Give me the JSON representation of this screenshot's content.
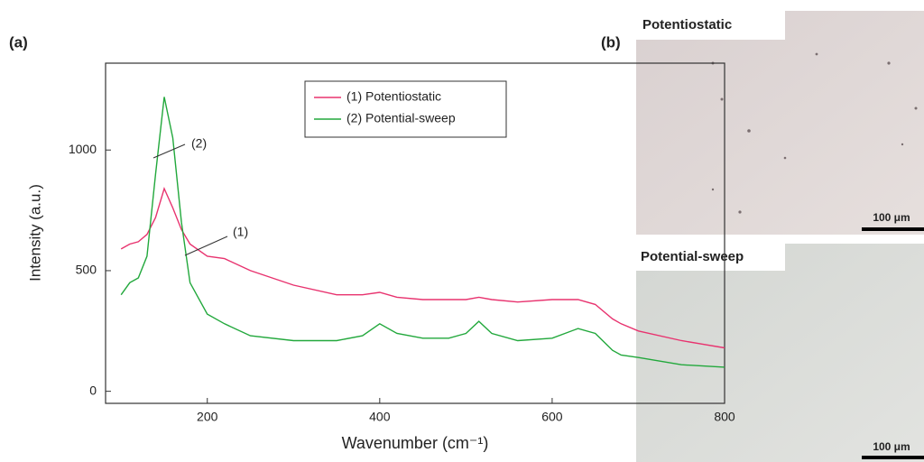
{
  "chart_data": {
    "type": "line",
    "panel_label": "(a)",
    "x_label": "Wavenumber (cm⁻¹)",
    "y_label": "Intensity (a.u.)",
    "x": [
      100,
      110,
      120,
      130,
      140,
      150,
      160,
      170,
      180,
      200,
      220,
      250,
      300,
      350,
      380,
      400,
      420,
      450,
      480,
      500,
      515,
      530,
      560,
      600,
      630,
      650,
      670,
      680,
      700,
      750,
      800
    ],
    "series": [
      {
        "name": "(1) Potentiostatic",
        "color": "#e8336f",
        "values": [
          590,
          610,
          620,
          650,
          720,
          840,
          760,
          670,
          610,
          560,
          550,
          500,
          440,
          400,
          400,
          410,
          390,
          380,
          380,
          380,
          390,
          380,
          370,
          380,
          380,
          360,
          300,
          280,
          250,
          210,
          180
        ]
      },
      {
        "name": "(2) Potential-sweep",
        "color": "#22a83c",
        "values": [
          400,
          450,
          470,
          560,
          900,
          1220,
          1050,
          700,
          450,
          320,
          280,
          230,
          210,
          210,
          230,
          280,
          240,
          220,
          220,
          240,
          290,
          240,
          210,
          220,
          260,
          240,
          170,
          150,
          140,
          110,
          100
        ]
      }
    ],
    "annotations": [
      "(1)",
      "(2)"
    ],
    "xlim": [
      82,
      800
    ],
    "ylim": [
      -50,
      1360
    ],
    "xticks": [
      200,
      400,
      600,
      800
    ],
    "yticks": [
      0,
      500,
      1000
    ],
    "legend": "upper right"
  },
  "image_panel": {
    "label": "(b)",
    "images": [
      {
        "title": "Potentiostatic",
        "scale_bar": "100 μm"
      },
      {
        "title": "Potential-sweep",
        "scale_bar": "100 μm"
      }
    ]
  }
}
